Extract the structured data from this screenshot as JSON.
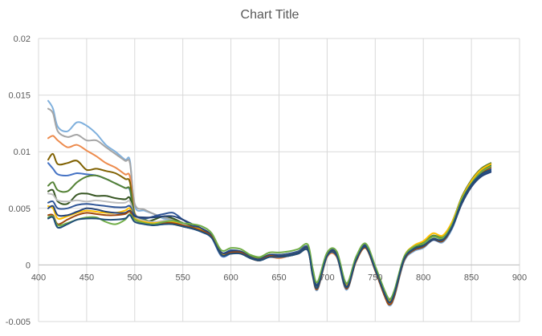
{
  "chart_data": {
    "type": "line",
    "title": "Chart Title",
    "xlabel": "",
    "ylabel": "",
    "xlim": [
      400,
      900
    ],
    "ylim": [
      -0.005,
      0.02
    ],
    "x_ticks": [
      400,
      450,
      500,
      550,
      600,
      650,
      700,
      750,
      800,
      850,
      900
    ],
    "y_ticks": [
      -0.005,
      0,
      0.005,
      0.01,
      0.015,
      0.02
    ],
    "y_tick_labels": [
      "-0.005",
      "0",
      "0.005",
      "0.01",
      "0.015",
      "0.02"
    ],
    "grid": true,
    "legend": "none",
    "x": [
      410,
      415,
      420,
      430,
      440,
      450,
      460,
      470,
      480,
      490,
      495,
      500,
      510,
      520,
      530,
      540,
      550,
      560,
      570,
      580,
      590,
      600,
      610,
      620,
      630,
      640,
      650,
      660,
      670,
      680,
      685,
      690,
      700,
      710,
      720,
      730,
      740,
      750,
      760,
      765,
      770,
      780,
      790,
      800,
      810,
      820,
      830,
      840,
      850,
      860,
      870
    ],
    "series": [
      {
        "color": "#7fb0dd",
        "values": [
          0.0145,
          0.0138,
          0.0122,
          0.0118,
          0.0126,
          0.0123,
          0.0116,
          0.0106,
          0.01,
          0.0093,
          0.0092,
          0.0052,
          0.0048,
          0.0045,
          0.0041,
          0.004,
          0.0036,
          0.0033,
          0.003,
          0.0025,
          0.0008,
          0.001,
          0.0011,
          0.0006,
          0.0004,
          0.0008,
          0.0007,
          0.0009,
          0.001,
          0.0014,
          -0.001,
          -0.0022,
          0.0007,
          0.0007,
          -0.0022,
          0.0003,
          0.0015,
          -0.0005,
          -0.0028,
          -0.0036,
          -0.0028,
          0.0003,
          0.0012,
          0.0015,
          0.0022,
          0.002,
          0.0032,
          0.0055,
          0.007,
          0.0078,
          0.0082
        ]
      },
      {
        "color": "#a5a5a5",
        "values": [
          0.0138,
          0.0134,
          0.0118,
          0.0113,
          0.0115,
          0.011,
          0.011,
          0.0104,
          0.0098,
          0.0092,
          0.009,
          0.0054,
          0.0049,
          0.0045,
          0.0042,
          0.004,
          0.0036,
          0.0033,
          0.003,
          0.0026,
          0.0009,
          0.0011,
          0.0011,
          0.0006,
          0.0005,
          0.0008,
          0.0008,
          0.0009,
          0.0011,
          0.0014,
          -0.0008,
          -0.002,
          0.0008,
          0.0008,
          -0.0021,
          0.0004,
          0.0016,
          -0.0004,
          -0.0027,
          -0.0034,
          -0.0026,
          0.0005,
          0.0013,
          0.0016,
          0.0023,
          0.0022,
          0.0035,
          0.0058,
          0.0073,
          0.0082,
          0.0087
        ]
      },
      {
        "color": "#ed8b4d",
        "values": [
          0.0112,
          0.0114,
          0.011,
          0.0104,
          0.0106,
          0.0101,
          0.0096,
          0.009,
          0.0086,
          0.008,
          0.0078,
          0.0046,
          0.004,
          0.0037,
          0.0038,
          0.0038,
          0.0035,
          0.0033,
          0.003,
          0.0025,
          0.0009,
          0.001,
          0.001,
          0.0006,
          0.0004,
          0.0007,
          0.0006,
          0.0008,
          0.001,
          0.0013,
          -0.001,
          -0.0021,
          0.0007,
          0.0007,
          -0.002,
          0.0003,
          0.0015,
          -0.0004,
          -0.0028,
          -0.0035,
          -0.0027,
          0.0005,
          0.0014,
          0.0018,
          0.0026,
          0.0022,
          0.0036,
          0.006,
          0.0075,
          0.0085,
          0.009
        ]
      },
      {
        "color": "#7f6000",
        "values": [
          0.0093,
          0.0098,
          0.0089,
          0.009,
          0.0092,
          0.0084,
          0.0085,
          0.0083,
          0.0081,
          0.0076,
          0.0073,
          0.0044,
          0.0038,
          0.0036,
          0.0037,
          0.0036,
          0.0034,
          0.0032,
          0.003,
          0.0025,
          0.001,
          0.001,
          0.0011,
          0.0007,
          0.0005,
          0.0008,
          0.0008,
          0.0009,
          0.0011,
          0.0014,
          -0.0007,
          -0.0019,
          0.0009,
          0.0009,
          -0.0019,
          0.0005,
          0.0017,
          -0.0003,
          -0.0025,
          -0.0032,
          -0.0024,
          0.0006,
          0.0015,
          0.0019,
          0.0025,
          0.0024,
          0.0037,
          0.0059,
          0.0074,
          0.0084,
          0.0089
        ]
      },
      {
        "color": "#4472c4",
        "values": [
          0.009,
          0.0085,
          0.008,
          0.0079,
          0.0081,
          0.008,
          0.0079,
          0.0076,
          0.0072,
          0.0068,
          0.0066,
          0.0042,
          0.0037,
          0.0036,
          0.0036,
          0.0037,
          0.0034,
          0.0032,
          0.0029,
          0.0024,
          0.0008,
          0.001,
          0.001,
          0.0006,
          0.0004,
          0.0007,
          0.0007,
          0.0008,
          0.001,
          0.0013,
          -0.0009,
          -0.002,
          0.0008,
          0.0008,
          -0.0021,
          0.0004,
          0.0016,
          -0.0004,
          -0.0027,
          -0.0034,
          -0.0026,
          0.0004,
          0.0013,
          0.0016,
          0.0023,
          0.0021,
          0.0034,
          0.0056,
          0.0071,
          0.008,
          0.0085
        ]
      },
      {
        "color": "#548235",
        "values": [
          0.007,
          0.0073,
          0.0066,
          0.0065,
          0.0073,
          0.0078,
          0.0079,
          0.0076,
          0.0072,
          0.0068,
          0.0067,
          0.0045,
          0.004,
          0.0038,
          0.0038,
          0.0038,
          0.0036,
          0.0034,
          0.0031,
          0.0026,
          0.0011,
          0.0012,
          0.0012,
          0.0008,
          0.0006,
          0.0009,
          0.0009,
          0.001,
          0.0012,
          0.0016,
          -0.0005,
          -0.0017,
          0.001,
          0.0011,
          -0.0017,
          0.0006,
          0.0018,
          -0.0002,
          -0.0024,
          -0.0031,
          -0.0023,
          0.0007,
          0.0016,
          0.002,
          0.0026,
          0.0025,
          0.0038,
          0.006,
          0.0075,
          0.0085,
          0.009
        ]
      },
      {
        "color": "#375623",
        "values": [
          0.0065,
          0.0066,
          0.0056,
          0.0054,
          0.0062,
          0.0063,
          0.0061,
          0.0061,
          0.0059,
          0.0058,
          0.0059,
          0.0042,
          0.0038,
          0.004,
          0.0043,
          0.0041,
          0.0037,
          0.0034,
          0.0031,
          0.0025,
          0.001,
          0.0012,
          0.0011,
          0.0007,
          0.0005,
          0.0008,
          0.0008,
          0.0009,
          0.0011,
          0.0014,
          -0.0007,
          -0.0018,
          0.0009,
          0.0009,
          -0.0019,
          0.0005,
          0.0017,
          -0.0003,
          -0.0025,
          -0.0032,
          -0.0024,
          0.0006,
          0.0015,
          0.0018,
          0.0025,
          0.0023,
          0.0036,
          0.0058,
          0.0073,
          0.0083,
          0.0088
        ]
      },
      {
        "color": "#bfbfbf",
        "values": [
          0.0063,
          0.0062,
          0.0057,
          0.0056,
          0.0057,
          0.0056,
          0.0057,
          0.0056,
          0.0055,
          0.0055,
          0.0056,
          0.0043,
          0.0039,
          0.0038,
          0.0039,
          0.0039,
          0.0036,
          0.0033,
          0.003,
          0.0025,
          0.0009,
          0.0011,
          0.0011,
          0.0006,
          0.0004,
          0.0008,
          0.0007,
          0.0008,
          0.001,
          0.0013,
          -0.0009,
          -0.002,
          0.0008,
          0.0008,
          -0.002,
          0.0004,
          0.0016,
          -0.0004,
          -0.0026,
          -0.0033,
          -0.0025,
          0.0005,
          0.0014,
          0.0017,
          0.0024,
          0.0022,
          0.0035,
          0.0057,
          0.0072,
          0.0081,
          0.0086
        ]
      },
      {
        "color": "#2f5597",
        "values": [
          0.0055,
          0.0056,
          0.005,
          0.005,
          0.0053,
          0.0054,
          0.0053,
          0.0052,
          0.0051,
          0.0051,
          0.0052,
          0.0044,
          0.0041,
          0.0043,
          0.0045,
          0.0046,
          0.004,
          0.0035,
          0.0032,
          0.0026,
          0.0011,
          0.0013,
          0.0012,
          0.0007,
          0.0005,
          0.0009,
          0.0009,
          0.001,
          0.0012,
          0.0016,
          -0.0005,
          -0.0017,
          0.001,
          0.0011,
          -0.0017,
          0.0006,
          0.0018,
          -0.0002,
          -0.0024,
          -0.0031,
          -0.0023,
          0.0006,
          0.0014,
          0.0017,
          0.0023,
          0.0022,
          0.0034,
          0.0055,
          0.007,
          0.0079,
          0.0083
        ]
      },
      {
        "color": "#ffc000",
        "values": [
          0.0052,
          0.005,
          0.0041,
          0.0043,
          0.0046,
          0.0048,
          0.0047,
          0.0046,
          0.0046,
          0.0048,
          0.005,
          0.0041,
          0.0038,
          0.0037,
          0.0038,
          0.0038,
          0.0035,
          0.0033,
          0.0031,
          0.0026,
          0.001,
          0.0011,
          0.0011,
          0.0007,
          0.0005,
          0.0008,
          0.0008,
          0.0009,
          0.0011,
          0.0015,
          -0.0006,
          -0.0018,
          0.0009,
          0.001,
          -0.0018,
          0.0005,
          0.0017,
          -0.0002,
          -0.0025,
          -0.0032,
          -0.0024,
          0.0007,
          0.0017,
          0.0021,
          0.0028,
          0.0026,
          0.0038,
          0.0059,
          0.0074,
          0.0084,
          0.0089
        ]
      },
      {
        "color": "#264478",
        "values": [
          0.005,
          0.0052,
          0.0044,
          0.0044,
          0.0047,
          0.005,
          0.0049,
          0.0047,
          0.0046,
          0.0046,
          0.0048,
          0.0043,
          0.0042,
          0.0042,
          0.0043,
          0.0043,
          0.004,
          0.0036,
          0.0032,
          0.0026,
          0.0011,
          0.0012,
          0.0012,
          0.0007,
          0.0005,
          0.0009,
          0.0008,
          0.0009,
          0.0011,
          0.0015,
          -0.0006,
          -0.0018,
          0.0009,
          0.001,
          -0.0019,
          0.0005,
          0.0017,
          -0.0003,
          -0.0026,
          -0.0033,
          -0.0025,
          0.0005,
          0.0013,
          0.0016,
          0.0022,
          0.0021,
          0.0033,
          0.0054,
          0.0069,
          0.0078,
          0.0082
        ]
      },
      {
        "color": "#9e480e",
        "values": [
          0.0044,
          0.0044,
          0.0036,
          0.004,
          0.0044,
          0.0046,
          0.0045,
          0.0044,
          0.0044,
          0.0045,
          0.0047,
          0.004,
          0.0037,
          0.0036,
          0.0037,
          0.0037,
          0.0035,
          0.0033,
          0.003,
          0.0025,
          0.0009,
          0.0011,
          0.0011,
          0.0006,
          0.0004,
          0.0008,
          0.0007,
          0.0008,
          0.001,
          0.0013,
          -0.0009,
          -0.0021,
          0.0008,
          0.0008,
          -0.0021,
          0.0003,
          0.0015,
          -0.0005,
          -0.0028,
          -0.0035,
          -0.0027,
          0.0004,
          0.0013,
          0.0016,
          0.0023,
          0.0021,
          0.0034,
          0.0056,
          0.0071,
          0.0081,
          0.0086
        ]
      },
      {
        "color": "#70ad47",
        "values": [
          0.0042,
          0.0043,
          0.0035,
          0.0037,
          0.004,
          0.0042,
          0.0042,
          0.0038,
          0.0036,
          0.004,
          0.0045,
          0.004,
          0.0037,
          0.0036,
          0.0038,
          0.0039,
          0.0037,
          0.0036,
          0.0034,
          0.0028,
          0.0013,
          0.0015,
          0.0014,
          0.0009,
          0.0007,
          0.0011,
          0.0011,
          0.0012,
          0.0014,
          0.0018,
          -0.0003,
          -0.0015,
          0.0011,
          0.0012,
          -0.0016,
          0.0007,
          0.0019,
          -0.0001,
          -0.0023,
          -0.003,
          -0.0022,
          0.0007,
          0.0016,
          0.0019,
          0.0025,
          0.0024,
          0.0036,
          0.0058,
          0.0072,
          0.0082,
          0.0087
        ]
      },
      {
        "color": "#1f4e79",
        "values": [
          0.0041,
          0.0042,
          0.0033,
          0.0036,
          0.004,
          0.0041,
          0.0041,
          0.004,
          0.004,
          0.0041,
          0.0044,
          0.0038,
          0.0036,
          0.0035,
          0.0036,
          0.0036,
          0.0034,
          0.0032,
          0.0029,
          0.0024,
          0.0009,
          0.001,
          0.001,
          0.0006,
          0.0004,
          0.0007,
          0.0007,
          0.0008,
          0.001,
          0.0013,
          -0.0009,
          -0.002,
          0.0008,
          0.0008,
          -0.002,
          0.0004,
          0.0016,
          -0.0004,
          -0.0026,
          -0.0033,
          -0.0025,
          0.0005,
          0.0014,
          0.0017,
          0.0023,
          0.0022,
          0.0034,
          0.0056,
          0.0071,
          0.008,
          0.0084
        ]
      }
    ]
  }
}
